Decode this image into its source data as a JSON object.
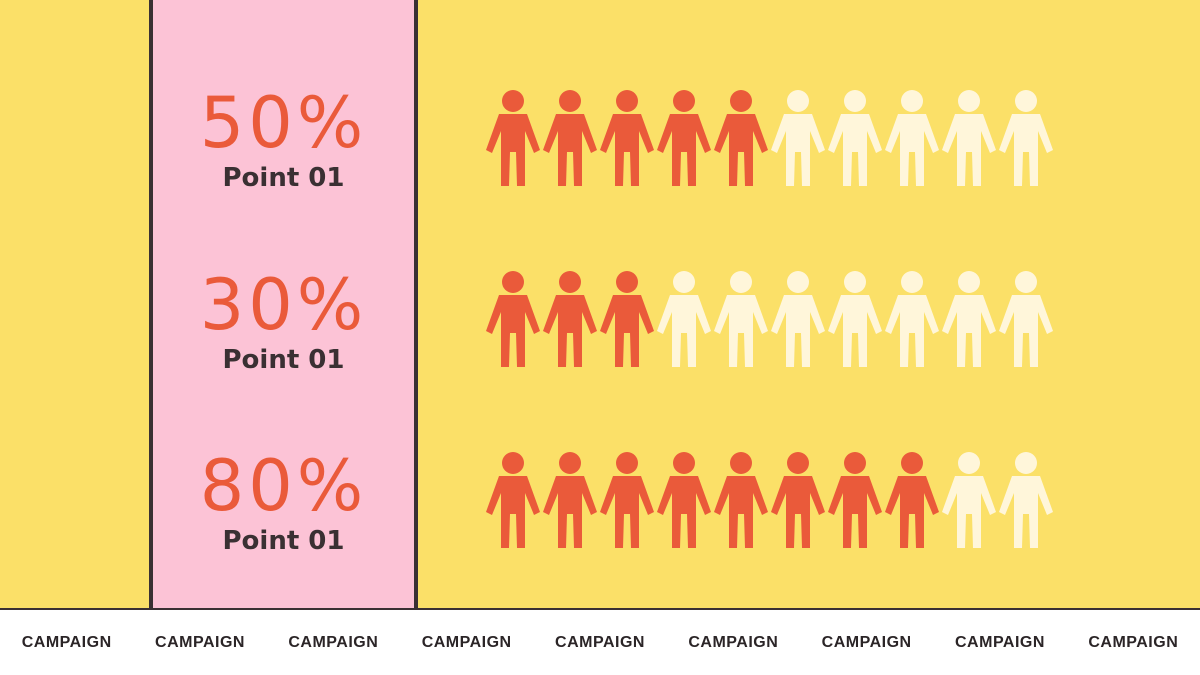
{
  "colors": {
    "background": "#FBE068",
    "column": "#FCC3D6",
    "filled": "#EA5A3A",
    "empty": "#FFF6DA",
    "text": "#3A3033"
  },
  "icon": "person-icon",
  "chart_data": {
    "type": "pictogram",
    "icons_per_row": 10,
    "rows": [
      {
        "value": "50%",
        "label": "Point 01",
        "percent": 50,
        "filled": 5
      },
      {
        "value": "30%",
        "label": "Point 01",
        "percent": 30,
        "filled": 3
      },
      {
        "value": "80%",
        "label": "Point 01",
        "percent": 80,
        "filled": 8
      }
    ]
  },
  "footer": {
    "items": [
      "CAMPAIGN",
      "CAMPAIGN",
      "CAMPAIGN",
      "CAMPAIGN",
      "CAMPAIGN",
      "CAMPAIGN",
      "CAMPAIGN",
      "CAMPAIGN",
      "CAMPAIGN"
    ]
  }
}
